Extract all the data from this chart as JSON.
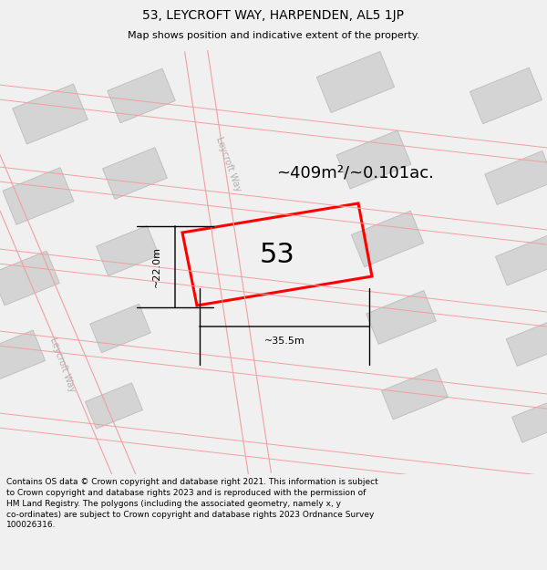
{
  "title": "53, LEYCROFT WAY, HARPENDEN, AL5 1JP",
  "subtitle": "Map shows position and indicative extent of the property.",
  "footer": "Contains OS data © Crown copyright and database right 2021. This information is subject to Crown copyright and database rights 2023 and is reproduced with the permission of HM Land Registry. The polygons (including the associated geometry, namely x, y co-ordinates) are subject to Crown copyright and database rights 2023 Ordnance Survey 100026316.",
  "area_label": "~409m²/~0.101ac.",
  "property_number": "53",
  "dim_width": "~35.5m",
  "dim_height": "~22.0m",
  "road_label_upper": "Leycroft Way",
  "road_label_lower": "Leycroft Way",
  "property_color": "#ff0000",
  "road_color": "#f0a0a0",
  "building_fc": "#d4d4d4",
  "building_ec": "#c0c0c0",
  "map_bg": "#ffffff",
  "page_bg": "#f0f0f0",
  "title_fontsize": 10,
  "subtitle_fontsize": 8,
  "footer_fontsize": 6.5
}
